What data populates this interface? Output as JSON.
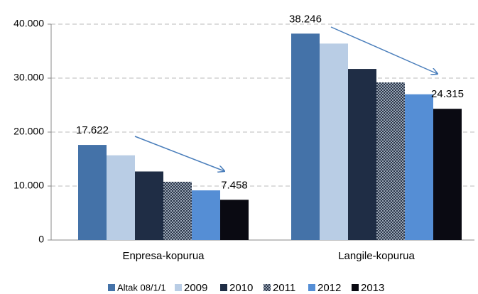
{
  "chart_data": {
    "type": "bar",
    "categories": [
      "Enpresa-kopurua",
      "Langile-kopurua"
    ],
    "series": [
      {
        "name": "Altak 08/1/1",
        "color": "#4472a8",
        "values": [
          17622,
          38246
        ],
        "value_labels": [
          "17.622",
          "38.246"
        ]
      },
      {
        "name": "2009",
        "color": "#b9cde5",
        "values": [
          15700,
          36400
        ]
      },
      {
        "name": "2010",
        "color": "#1f2d45",
        "values": [
          12700,
          31700
        ]
      },
      {
        "name": "2011",
        "color": "#56657a",
        "pattern": "checker",
        "values": [
          10800,
          29200
        ]
      },
      {
        "name": "2012",
        "color": "#558ed5",
        "values": [
          9200,
          27000
        ]
      },
      {
        "name": "2013",
        "color": "#0a0a12",
        "values": [
          7458,
          24315
        ],
        "value_labels": [
          "7.458",
          "24.315"
        ]
      }
    ],
    "ylim": [
      0,
      40000
    ],
    "yticks": [
      {
        "value": 0,
        "label": "0"
      },
      {
        "value": 10000,
        "label": "10.000"
      },
      {
        "value": 20000,
        "label": "20.000"
      },
      {
        "value": 30000,
        "label": "30.000"
      },
      {
        "value": 40000,
        "label": "40.000"
      }
    ],
    "grid": true,
    "legend": "bottom"
  }
}
